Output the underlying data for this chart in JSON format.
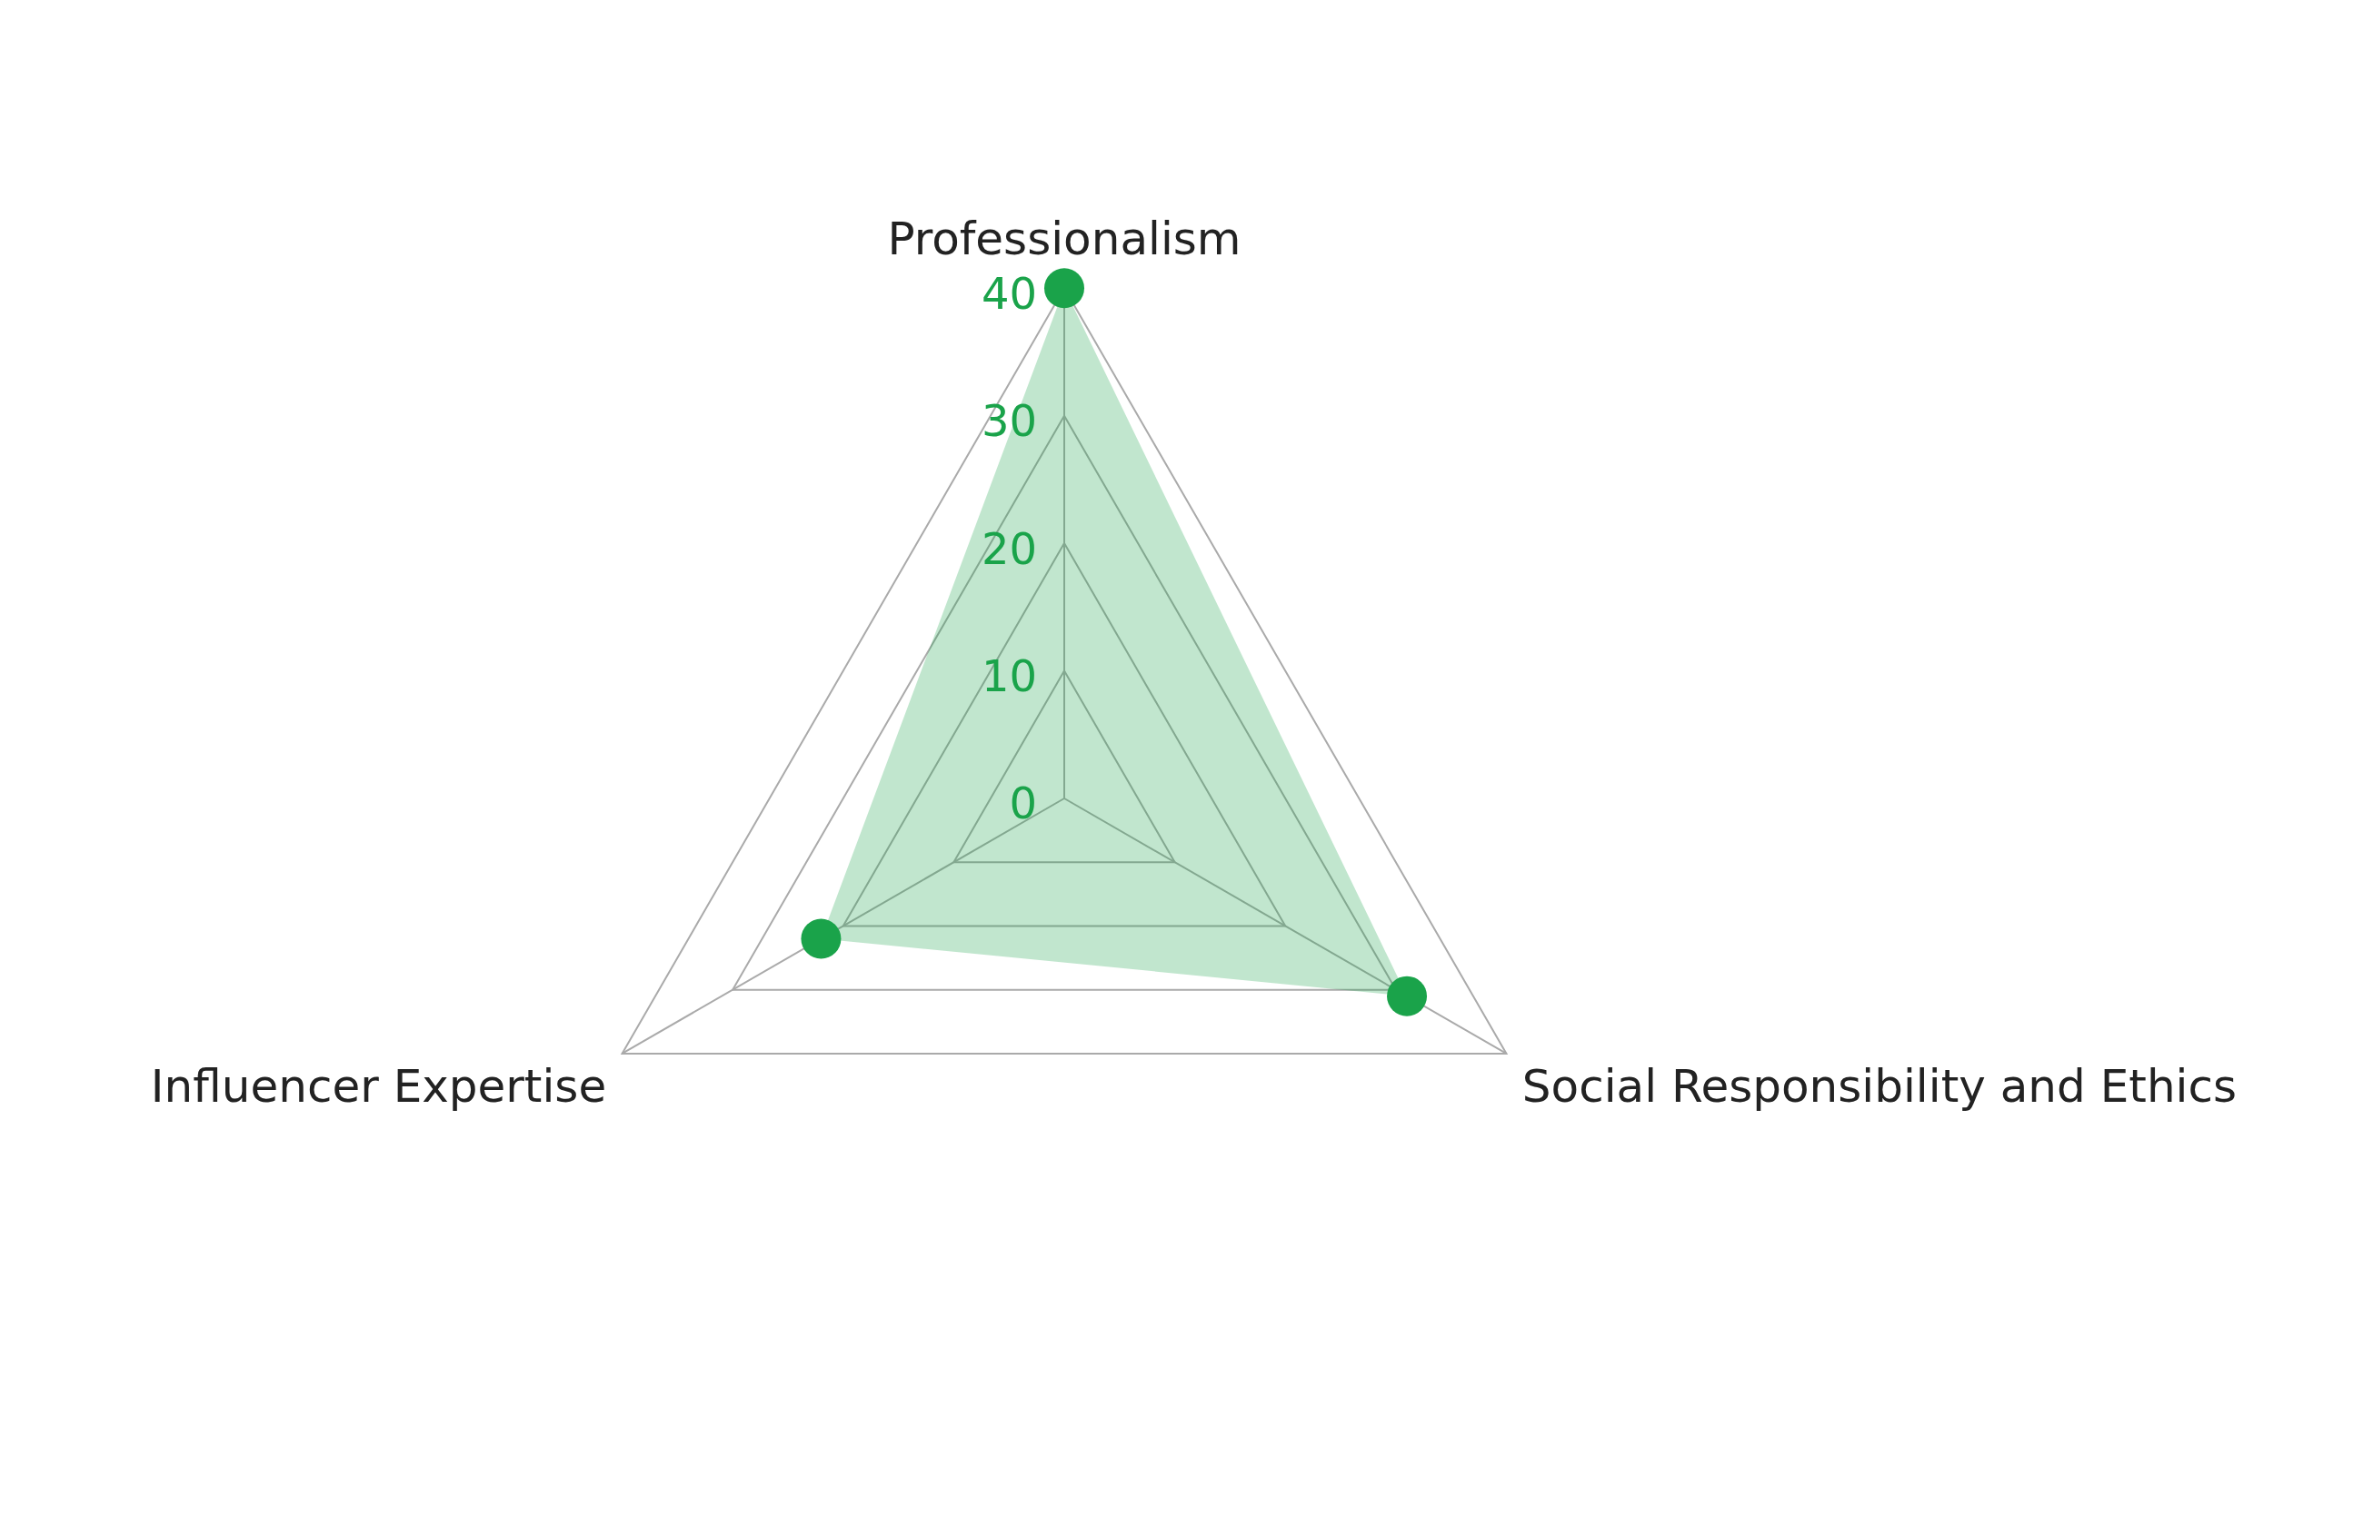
{
  "chart_data": {
    "type": "radar",
    "categories": [
      "Professionalism",
      "Social Responsibility and Ethics",
      "Influencer Expertise"
    ],
    "series": [
      {
        "color": "#1aa34a",
        "values": [
          40,
          31,
          22
        ]
      }
    ],
    "ylim": [
      0,
      40
    ],
    "yticks": [
      0,
      10,
      20,
      30,
      40
    ],
    "grid": true,
    "legend": false,
    "marker": "circle"
  }
}
